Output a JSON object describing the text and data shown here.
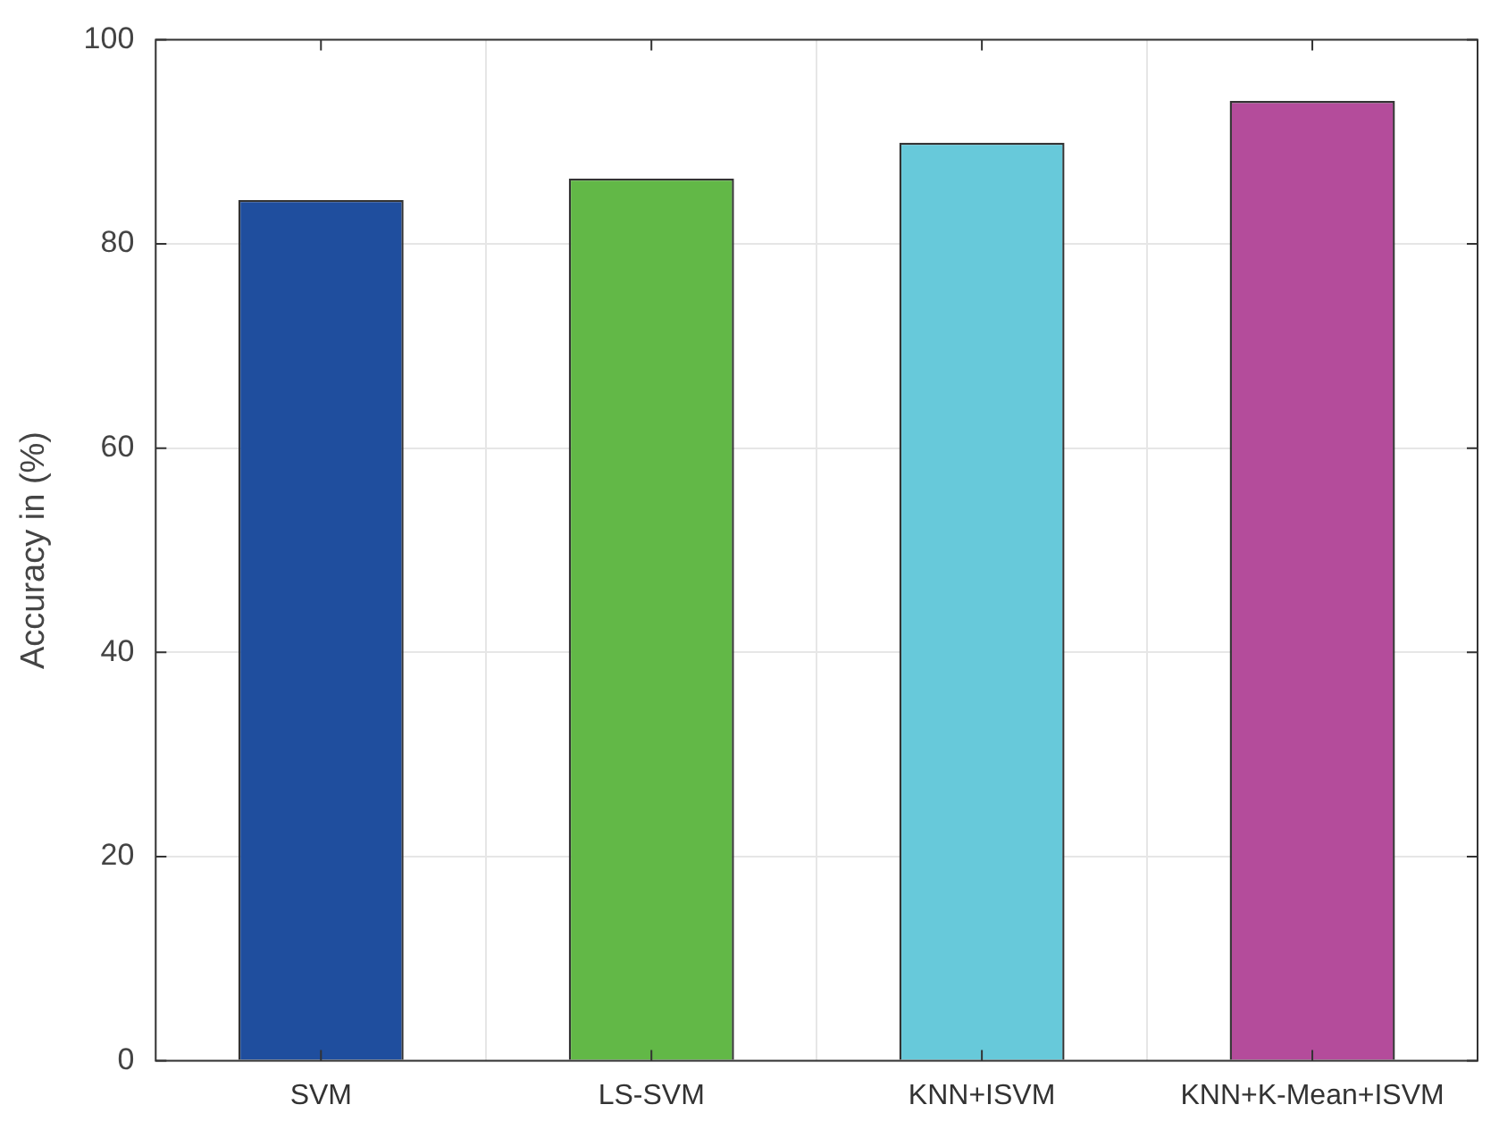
{
  "chart_data": {
    "type": "bar",
    "ylabel": "Accuracy in (%)",
    "categories": [
      "SVM",
      "LS-SVM",
      "KNN+ISVM",
      "KNN+K-Mean+ISVM"
    ],
    "values": [
      84.3,
      86.4,
      89.9,
      94.0
    ],
    "colors": [
      "#1f4e9e",
      "#62b847",
      "#67c9da",
      "#b44c9b"
    ],
    "ylim": [
      0,
      100
    ],
    "yticks": [
      0,
      20,
      40,
      60,
      80,
      100
    ],
    "grid": true,
    "legend": false
  }
}
